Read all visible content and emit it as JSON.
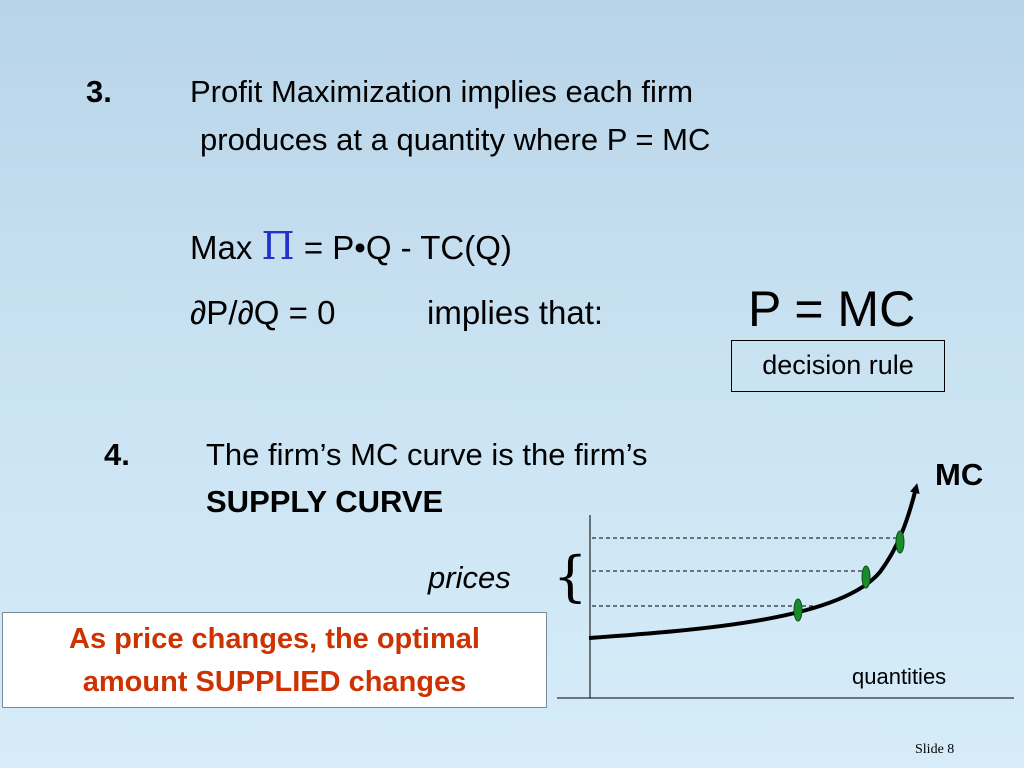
{
  "section3": {
    "number": "3.",
    "line1": "Profit Maximization implies each firm",
    "line2": "produces at a quantity where P = MC",
    "max_label": "Max",
    "pi_symbol": "Π",
    "max_rest": "= P•Q - TC(Q)",
    "derivative": "∂P/∂Q = 0",
    "implies": "implies that:",
    "result": "P = MC",
    "decision_rule": "decision rule"
  },
  "section4": {
    "number": "4.",
    "line1": "The firm’s MC curve is the firm’s",
    "line2": "SUPPLY CURVE"
  },
  "callout": {
    "line1": "As price changes, the optimal",
    "line2": "amount SUPPLIED changes"
  },
  "graph": {
    "curve_label": "MC",
    "prices_label": "prices",
    "brace": "{",
    "x_axis_label": "quantities",
    "curve_color": "#000000",
    "point_color": "#1a8a2a"
  },
  "footer": {
    "slide_number": "Slide 8"
  }
}
